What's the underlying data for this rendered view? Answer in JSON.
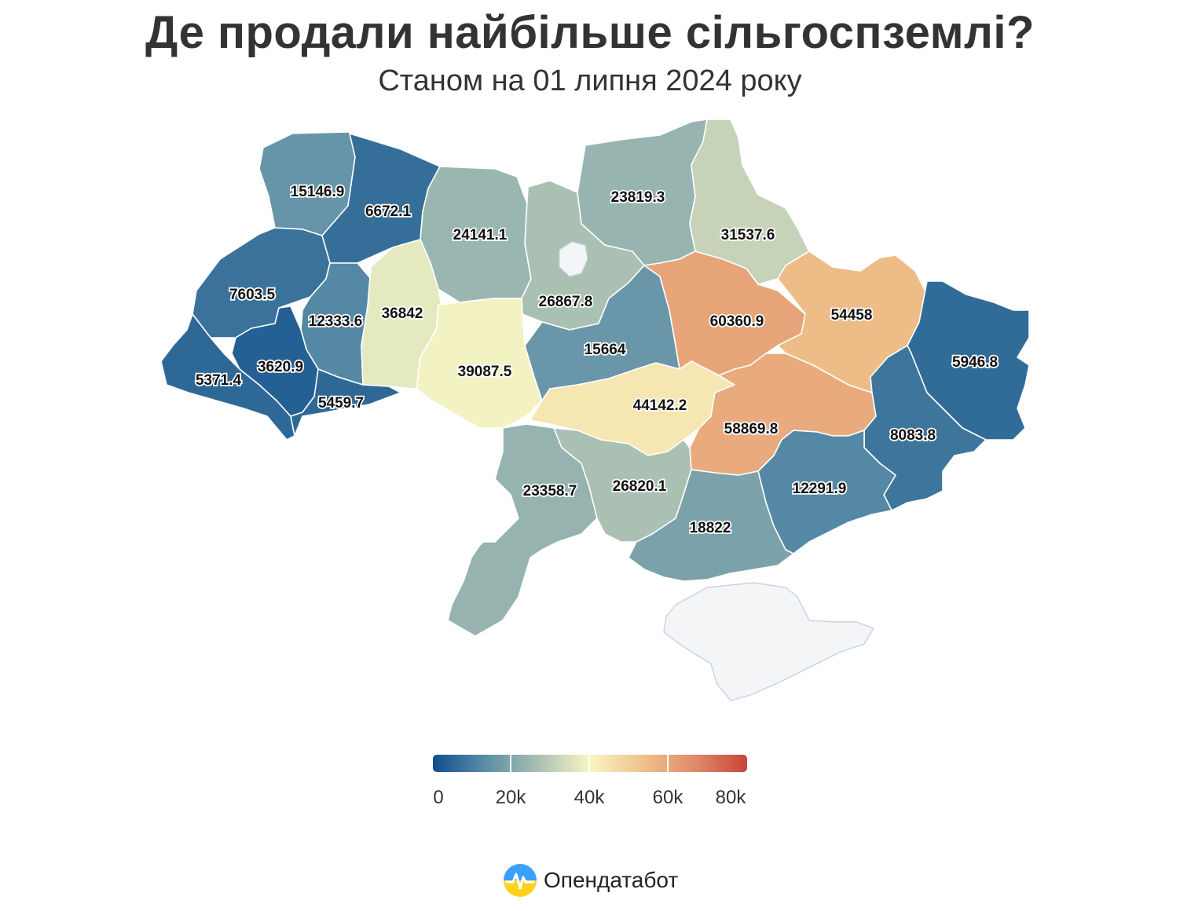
{
  "header": {
    "title": "Де продали найбільше сільгоспземлі?",
    "subtitle": "Станом на 01 липня 2024 року"
  },
  "colors": {
    "scale": [
      "#0f4f8c",
      "#5b8da6",
      "#a9bfb3",
      "#f8f6c4",
      "#efc28a",
      "#e08a6a",
      "#c8443a"
    ],
    "nodata": "#f4f5f7",
    "border": "#ffffff"
  },
  "map_data": {
    "type": "choropleth",
    "color_domain": [
      0,
      80000
    ],
    "regions": [
      {
        "id": "volyn",
        "value": 15146.9,
        "label": "15146.9"
      },
      {
        "id": "rivne",
        "value": 6672.1,
        "label": "6672.1"
      },
      {
        "id": "zhytomyr",
        "value": 24141.1,
        "label": "24141.1"
      },
      {
        "id": "kyiv",
        "value": 26867.8,
        "label": "26867.8"
      },
      {
        "id": "chernihiv",
        "value": 23819.3,
        "label": "23819.3"
      },
      {
        "id": "sumy",
        "value": 31537.6,
        "label": "31537.6"
      },
      {
        "id": "lviv",
        "value": 7603.5,
        "label": "7603.5"
      },
      {
        "id": "ternopil",
        "value": 12333.6,
        "label": "12333.6"
      },
      {
        "id": "khmelnytskyi",
        "value": 36842,
        "label": "36842"
      },
      {
        "id": "vinnytsia",
        "value": 39087.5,
        "label": "39087.5"
      },
      {
        "id": "cherkasy",
        "value": 15664,
        "label": "15664"
      },
      {
        "id": "poltava",
        "value": 60360.9,
        "label": "60360.9"
      },
      {
        "id": "kharkiv",
        "value": 54458,
        "label": "54458"
      },
      {
        "id": "luhansk",
        "value": 5946.8,
        "label": "5946.8"
      },
      {
        "id": "zakarpattia",
        "value": 5371.4,
        "label": "5371.4"
      },
      {
        "id": "ivano-frankivsk",
        "value": 3620.9,
        "label": "3620.9"
      },
      {
        "id": "chernivtsi",
        "value": 5459.7,
        "label": "5459.7"
      },
      {
        "id": "kirovohrad",
        "value": 44142.2,
        "label": "44142.2"
      },
      {
        "id": "dnipropetrovsk",
        "value": 58869.8,
        "label": "58869.8"
      },
      {
        "id": "donetsk",
        "value": 8083.8,
        "label": "8083.8"
      },
      {
        "id": "odesa",
        "value": 23358.7,
        "label": "23358.7"
      },
      {
        "id": "mykolaiv",
        "value": 26820.1,
        "label": "26820.1"
      },
      {
        "id": "zaporizhzhia",
        "value": 12291.9,
        "label": "12291.9"
      },
      {
        "id": "kherson",
        "value": 18822,
        "label": "18822"
      }
    ]
  },
  "legend": {
    "ticks": [
      "0",
      "20k",
      "40k",
      "60k",
      "80k"
    ],
    "min": 0,
    "max": 80000
  },
  "brand": {
    "logo_text": "Опендатабот",
    "icon": "opendatabot-logo-icon"
  }
}
